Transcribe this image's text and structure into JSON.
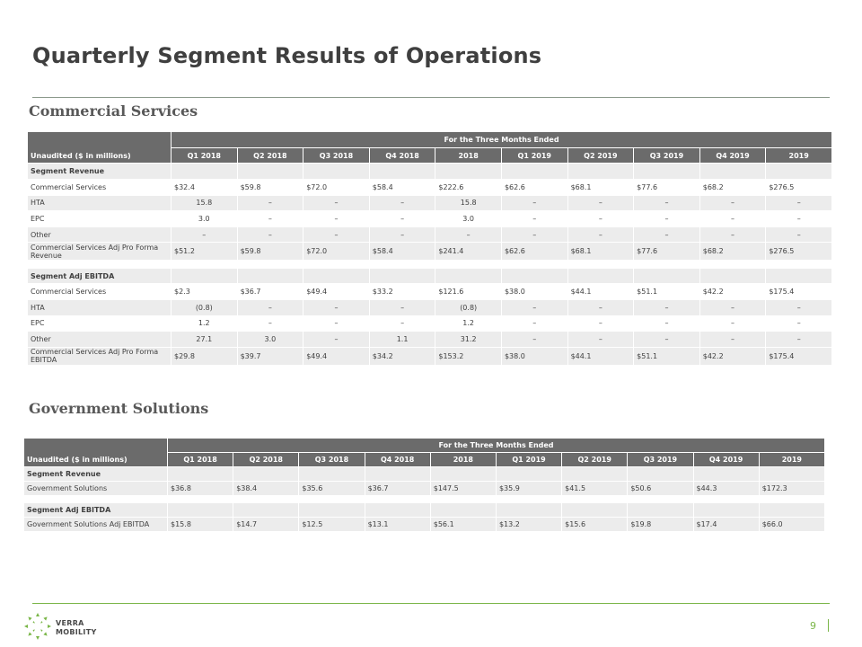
{
  "title": "Quarterly Segment Results of Operations",
  "page_number": "9",
  "logo": {
    "line1": "VERRA",
    "line2": "MOBILITY",
    "color": "#7ab648"
  },
  "columns": [
    "Q1 2018",
    "Q2 2018",
    "Q3 2018",
    "Q4 2018",
    "2018",
    "Q1 2019",
    "Q2 2019",
    "Q3 2019",
    "Q4 2019",
    "2019"
  ],
  "span_header": "For the Three Months Ended",
  "corner_label": "Unaudited ($ in millions)",
  "commercial": {
    "title": "Commercial  Services",
    "revenue_header": "Segment Revenue",
    "revenue_rows": [
      {
        "label": "Commercial Services",
        "values": [
          "$32.4",
          "$59.8",
          "$72.0",
          "$58.4",
          "$222.6",
          "$62.6",
          "$68.1",
          "$77.6",
          "$68.2",
          "$276.5"
        ]
      },
      {
        "label": "HTA",
        "values": [
          "15.8",
          "–",
          "–",
          "–",
          "15.8",
          "–",
          "–",
          "–",
          "–",
          "–"
        ]
      },
      {
        "label": "EPC",
        "values": [
          "3.0",
          "–",
          "–",
          "–",
          "3.0",
          "–",
          "–",
          "–",
          "–",
          "–"
        ]
      },
      {
        "label": "Other",
        "values": [
          "–",
          "–",
          "–",
          "–",
          "–",
          "–",
          "–",
          "–",
          "–",
          "–"
        ]
      }
    ],
    "revenue_total": {
      "label": "Commercial Services Adj Pro Forma Revenue",
      "values": [
        "$51.2",
        "$59.8",
        "$72.0",
        "$58.4",
        "$241.4",
        "$62.6",
        "$68.1",
        "$77.6",
        "$68.2",
        "$276.5"
      ]
    },
    "ebitda_header": "Segment Adj EBITDA",
    "ebitda_rows": [
      {
        "label": "Commercial Services",
        "values": [
          "$2.3",
          "$36.7",
          "$49.4",
          "$33.2",
          "$121.6",
          "$38.0",
          "$44.1",
          "$51.1",
          "$42.2",
          "$175.4"
        ]
      },
      {
        "label": "HTA",
        "values": [
          "(0.8)",
          "–",
          "–",
          "–",
          "(0.8)",
          "–",
          "–",
          "–",
          "–",
          "–"
        ]
      },
      {
        "label": "EPC",
        "values": [
          "1.2",
          "–",
          "–",
          "–",
          "1.2",
          "–",
          "–",
          "–",
          "–",
          "–"
        ]
      },
      {
        "label": "Other",
        "values": [
          "27.1",
          "3.0",
          "–",
          "1.1",
          "31.2",
          "–",
          "–",
          "–",
          "–",
          "–"
        ]
      }
    ],
    "ebitda_total": {
      "label": "Commercial Services Adj Pro Forma EBITDA",
      "values": [
        "$29.8",
        "$39.7",
        "$49.4",
        "$34.2",
        "$153.2",
        "$38.0",
        "$44.1",
        "$51.1",
        "$42.2",
        "$175.4"
      ]
    }
  },
  "government": {
    "title": "Government Solutions",
    "revenue_header": "Segment Revenue",
    "revenue_rows": [
      {
        "label": "Government Solutions",
        "values": [
          "$36.8",
          "$38.4",
          "$35.6",
          "$36.7",
          "$147.5",
          "$35.9",
          "$41.5",
          "$50.6",
          "$44.3",
          "$172.3"
        ]
      }
    ],
    "ebitda_header": "Segment Adj EBITDA",
    "ebitda_rows": [
      {
        "label": "Government Solutions Adj EBITDA",
        "values": [
          "$15.8",
          "$14.7",
          "$12.5",
          "$13.1",
          "$56.1",
          "$13.2",
          "$15.6",
          "$19.8",
          "$17.4",
          "$66.0"
        ]
      }
    ]
  }
}
